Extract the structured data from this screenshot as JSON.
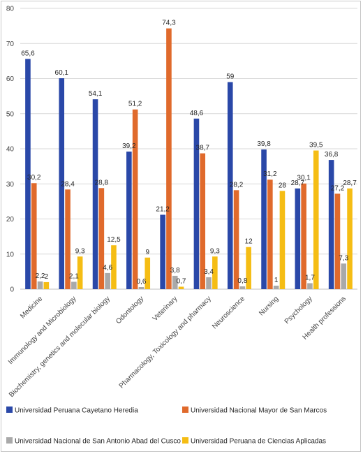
{
  "colors": {
    "upch": "#2a48a8",
    "unmsm": "#e06a2c",
    "unsaac": "#a9a9a9",
    "upc": "#f5bd14",
    "gridline": "#d9d9d9",
    "axis": "#bfbfbf"
  },
  "chart_data": {
    "type": "bar",
    "title": "",
    "xlabel": "",
    "ylabel": "",
    "ylim": [
      0,
      80
    ],
    "yticks": [
      0,
      10,
      20,
      30,
      40,
      50,
      60,
      70,
      80
    ],
    "grid": true,
    "legend_position": "bottom",
    "categories": [
      "Medicine",
      "Immunology and Microbiology",
      "Biochemistry, genetics and molecular biology",
      "Odontology",
      "Veterinary",
      "Pharmacology, Toxicology and pharmacy",
      "Neuroscience",
      "Nursing",
      "Psychology",
      "Health professions"
    ],
    "series": [
      {
        "name": "Universidad Peruana Cayetano Heredia",
        "color_key": "upch",
        "values": [
          65.6,
          60.1,
          54.1,
          39.2,
          21.2,
          48.6,
          59,
          39.8,
          28.7,
          36.8
        ],
        "labels": [
          "65,6",
          "60,1",
          "54,1",
          "39,2",
          "21,2",
          "48,6",
          "59",
          "39,8",
          "28,7",
          "36,8"
        ]
      },
      {
        "name": "Universidad Nacional Mayor de San Marcos",
        "color_key": "unmsm",
        "values": [
          30.2,
          28.4,
          28.8,
          51.2,
          74.3,
          38.7,
          28.2,
          31.2,
          30.1,
          27.2
        ],
        "labels": [
          "30,2",
          "28,4",
          "28,8",
          "51,2",
          "74,3",
          "38,7",
          "28,2",
          "31,2",
          "30,1",
          "27,2"
        ]
      },
      {
        "name": "Universidad Nacional de San Antonio Abad del Cusco",
        "color_key": "unsaac",
        "values": [
          2.2,
          2.1,
          4.6,
          0.6,
          3.8,
          3.4,
          0.8,
          1,
          1.7,
          7.3
        ],
        "labels": [
          "2,2",
          "2,1",
          "4,6",
          "0,6",
          "3,8",
          "3,4",
          "0,8",
          "1",
          "1,7",
          "7,3"
        ]
      },
      {
        "name": "Universidad Peruana de Ciencias Aplicadas",
        "color_key": "upc",
        "values": [
          2,
          9.3,
          12.5,
          9,
          0.7,
          9.3,
          12,
          28,
          39.5,
          28.7
        ],
        "labels": [
          "2",
          "9,3",
          "12,5",
          "9",
          "0,7",
          "9,3",
          "12",
          "28",
          "39,5",
          "28,7"
        ]
      }
    ]
  }
}
